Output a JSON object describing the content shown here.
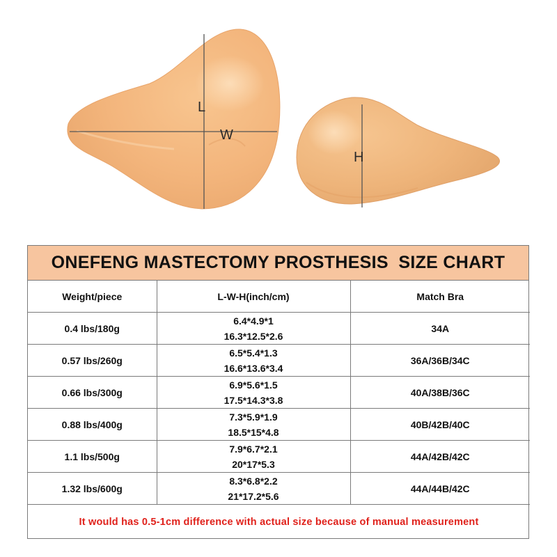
{
  "photo": {
    "label_length": "L",
    "label_width": "W",
    "label_height": "H",
    "skin_color": "#f4b980",
    "line_color": "#555555"
  },
  "chart": {
    "title": "ONEFENG MASTECTOMY PROSTHESIS  SIZE CHART",
    "title_bg": "#f7c59f",
    "headers": [
      "Weight/piece",
      "L-W-H(inch/cm)",
      "Match Bra"
    ],
    "rows": [
      {
        "weight": "0.4 lbs/180g",
        "inch": "6.4*4.9*1",
        "cm": "16.3*12.5*2.6",
        "bra": "34A"
      },
      {
        "weight": "0.57 lbs/260g",
        "inch": "6.5*5.4*1.3",
        "cm": "16.6*13.6*3.4",
        "bra": "36A/36B/34C"
      },
      {
        "weight": "0.66 lbs/300g",
        "inch": "6.9*5.6*1.5",
        "cm": "17.5*14.3*3.8",
        "bra": "40A/38B/36C"
      },
      {
        "weight": "0.88 lbs/400g",
        "inch": "7.3*5.9*1.9",
        "cm": "18.5*15*4.8",
        "bra": "40B/42B/40C"
      },
      {
        "weight": "1.1 lbs/500g",
        "inch": "7.9*6.7*2.1",
        "cm": "20*17*5.3",
        "bra": "44A/42B/42C"
      },
      {
        "weight": "1.32 lbs/600g",
        "inch": "8.3*6.8*2.2",
        "cm": "21*17.2*5.6",
        "bra": "44A/44B/42C"
      }
    ],
    "note": "It would has 0.5-1cm difference with actual size because of manual measurement",
    "note_color": "#e0221c"
  }
}
